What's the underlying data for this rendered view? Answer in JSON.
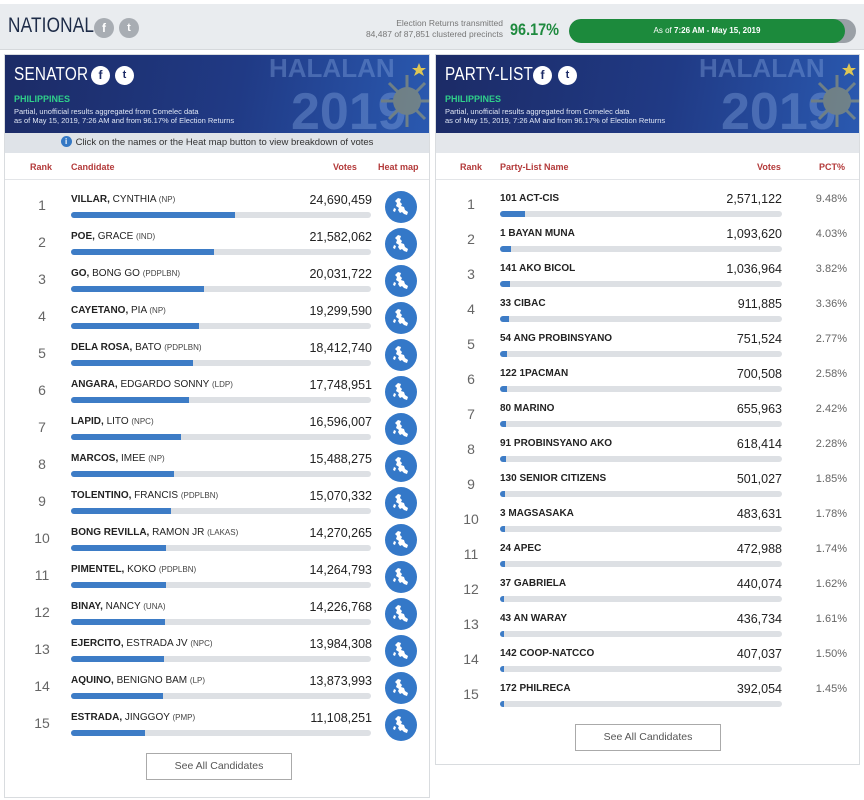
{
  "header": {
    "title": "NATIONAL",
    "er_line1": "Election Returns transmitted",
    "er_line2": "84,487 of 87,851 clustered precincts",
    "er_percent": "96.17%",
    "er_fraction": 0.9617,
    "as_of_prefix": "As of",
    "as_of_time": "7:26 AM - May 15, 2019"
  },
  "senator": {
    "title": "SENATOR",
    "region": "PHILIPPINES",
    "desc_line1": "Partial, unofficial results aggregated from Comelec data",
    "desc_line2": "as of May 15, 2019, 7:26 AM and from 96.17% of Election Returns",
    "logo_text": "HALALAN",
    "logo_year": "2019",
    "info": "Click on the names or the Heat map button to view breakdown of votes",
    "columns": {
      "rank": "Rank",
      "candidate": "Candidate",
      "votes": "Votes",
      "heatmap": "Heat map"
    },
    "candidates": [
      {
        "rank": "1",
        "last": "VILLAR,",
        "first": "CYNTHIA",
        "party": "(NP)",
        "votes": "24,690,459",
        "share": 0.5463
      },
      {
        "rank": "2",
        "last": "POE,",
        "first": "GRACE",
        "party": "(IND)",
        "votes": "21,582,062",
        "share": 0.4775
      },
      {
        "rank": "3",
        "last": "GO,",
        "first": "BONG GO",
        "party": "(PDPLBN)",
        "votes": "20,031,722",
        "share": 0.4432
      },
      {
        "rank": "4",
        "last": "CAYETANO,",
        "first": "PIA",
        "party": "(NP)",
        "votes": "19,299,590",
        "share": 0.427
      },
      {
        "rank": "5",
        "last": "DELA ROSA,",
        "first": "BATO",
        "party": "(PDPLBN)",
        "votes": "18,412,740",
        "share": 0.4074
      },
      {
        "rank": "6",
        "last": "ANGARA,",
        "first": "EDGARDO SONNY",
        "party": "(LDP)",
        "votes": "17,748,951",
        "share": 0.3927
      },
      {
        "rank": "7",
        "last": "LAPID,",
        "first": "LITO",
        "party": "(NPC)",
        "votes": "16,596,007",
        "share": 0.3672
      },
      {
        "rank": "8",
        "last": "MARCOS,",
        "first": "IMEE",
        "party": "(NP)",
        "votes": "15,488,275",
        "share": 0.3427
      },
      {
        "rank": "9",
        "last": "TOLENTINO,",
        "first": "FRANCIS",
        "party": "(PDPLBN)",
        "votes": "15,070,332",
        "share": 0.3334
      },
      {
        "rank": "10",
        "last": "BONG REVILLA,",
        "first": "RAMON JR",
        "party": "(LAKAS)",
        "votes": "14,270,265",
        "share": 0.3157
      },
      {
        "rank": "11",
        "last": "PIMENTEL,",
        "first": "KOKO",
        "party": "(PDPLBN)",
        "votes": "14,264,793",
        "share": 0.3156
      },
      {
        "rank": "12",
        "last": "BINAY,",
        "first": "NANCY",
        "party": "(UNA)",
        "votes": "14,226,768",
        "share": 0.3148
      },
      {
        "rank": "13",
        "last": "EJERCITO,",
        "first": "ESTRADA JV",
        "party": "(NPC)",
        "votes": "13,984,308",
        "share": 0.3094
      },
      {
        "rank": "14",
        "last": "AQUINO,",
        "first": "BENIGNO BAM",
        "party": "(LP)",
        "votes": "13,873,993",
        "share": 0.307
      },
      {
        "rank": "15",
        "last": "ESTRADA,",
        "first": "JINGGOY",
        "party": "(PMP)",
        "votes": "11,108,251",
        "share": 0.2458
      }
    ],
    "see_all": "See All Candidates"
  },
  "partylist": {
    "title": "PARTY-LIST",
    "region": "PHILIPPINES",
    "desc_line1": "Partial, unofficial results aggregated from Comelec data",
    "desc_line2": "as of May 15, 2019, 7:26 AM and from 96.17% of Election Returns",
    "logo_text": "HALALAN",
    "logo_year": "2019",
    "columns": {
      "rank": "Rank",
      "name": "Party-List Name",
      "votes": "Votes",
      "pct": "PCT%"
    },
    "parties": [
      {
        "rank": "1",
        "name": "101 ACT-CIS",
        "votes": "2,571,122",
        "pct": "9.48%",
        "share": 0.0948
      },
      {
        "rank": "2",
        "name": "1 BAYAN MUNA",
        "votes": "1,093,620",
        "pct": "4.03%",
        "share": 0.0403
      },
      {
        "rank": "3",
        "name": "141 AKO BICOL",
        "votes": "1,036,964",
        "pct": "3.82%",
        "share": 0.0382
      },
      {
        "rank": "4",
        "name": "33 CIBAC",
        "votes": "911,885",
        "pct": "3.36%",
        "share": 0.0336
      },
      {
        "rank": "5",
        "name": "54 ANG PROBINSYANO",
        "votes": "751,524",
        "pct": "2.77%",
        "share": 0.0277
      },
      {
        "rank": "6",
        "name": "122 1PACMAN",
        "votes": "700,508",
        "pct": "2.58%",
        "share": 0.0258
      },
      {
        "rank": "7",
        "name": "80 MARINO",
        "votes": "655,963",
        "pct": "2.42%",
        "share": 0.0242
      },
      {
        "rank": "8",
        "name": "91 PROBINSYANO AKO",
        "votes": "618,414",
        "pct": "2.28%",
        "share": 0.0228
      },
      {
        "rank": "9",
        "name": "130 SENIOR CITIZENS",
        "votes": "501,027",
        "pct": "1.85%",
        "share": 0.0185
      },
      {
        "rank": "10",
        "name": "3 MAGSASAKA",
        "votes": "483,631",
        "pct": "1.78%",
        "share": 0.0178
      },
      {
        "rank": "11",
        "name": "24 APEC",
        "votes": "472,988",
        "pct": "1.74%",
        "share": 0.0174
      },
      {
        "rank": "12",
        "name": "37 GABRIELA",
        "votes": "440,074",
        "pct": "1.62%",
        "share": 0.0162
      },
      {
        "rank": "13",
        "name": "43 AN WARAY",
        "votes": "436,734",
        "pct": "1.61%",
        "share": 0.0161
      },
      {
        "rank": "14",
        "name": "142 COOP-NATCCO",
        "votes": "407,037",
        "pct": "1.50%",
        "share": 0.015
      },
      {
        "rank": "15",
        "name": "172 PHILRECA",
        "votes": "392,054",
        "pct": "1.45%",
        "share": 0.0145
      }
    ],
    "see_all": "See All Candidates"
  },
  "icons": {
    "facebook": "facebook-icon",
    "twitter": "twitter-icon",
    "heatmap": "philippines-map-icon",
    "info": "info-icon"
  },
  "colors": {
    "navy": "#1c2b66",
    "bar_blue": "#3d7cc6",
    "green": "#1c8a3c",
    "region_green": "#2fd08a",
    "header_red": "#b33a3a"
  }
}
